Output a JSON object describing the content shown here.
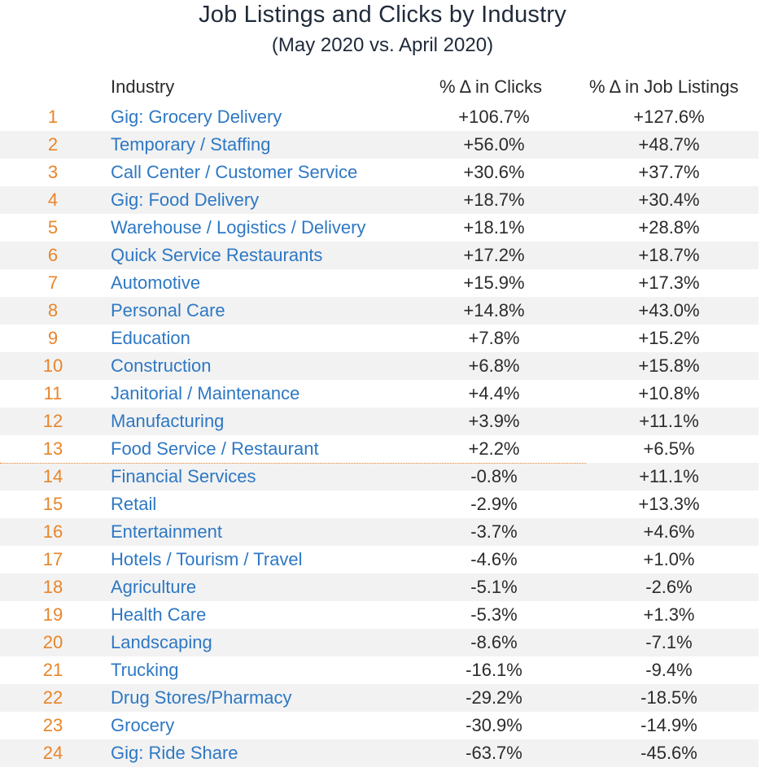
{
  "chart_data": {
    "type": "table",
    "title": "Job Listings and Clicks by Industry",
    "subtitle": "(May 2020 vs. April 2020)",
    "columns": [
      "Industry",
      "% Δ in Clicks",
      "% Δ in Job Listings"
    ],
    "rows": [
      {
        "rank": "1",
        "industry": "Gig: Grocery Delivery",
        "clicks": "+106.7%",
        "jobs": "+127.6%"
      },
      {
        "rank": "2",
        "industry": "Temporary / Staffing",
        "clicks": "+56.0%",
        "jobs": "+48.7%"
      },
      {
        "rank": "3",
        "industry": "Call Center / Customer Service",
        "clicks": "+30.6%",
        "jobs": "+37.7%"
      },
      {
        "rank": "4",
        "industry": "Gig: Food Delivery",
        "clicks": "+18.7%",
        "jobs": "+30.4%"
      },
      {
        "rank": "5",
        "industry": "Warehouse / Logistics / Delivery",
        "clicks": "+18.1%",
        "jobs": "+28.8%"
      },
      {
        "rank": "6",
        "industry": "Quick Service Restaurants",
        "clicks": "+17.2%",
        "jobs": "+18.7%"
      },
      {
        "rank": "7",
        "industry": "Automotive",
        "clicks": "+15.9%",
        "jobs": "+17.3%"
      },
      {
        "rank": "8",
        "industry": "Personal Care",
        "clicks": "+14.8%",
        "jobs": "+43.0%"
      },
      {
        "rank": "9",
        "industry": "Education",
        "clicks": "+7.8%",
        "jobs": "+15.2%"
      },
      {
        "rank": "10",
        "industry": "Construction",
        "clicks": "+6.8%",
        "jobs": "+15.8%"
      },
      {
        "rank": "11",
        "industry": "Janitorial / Maintenance",
        "clicks": "+4.4%",
        "jobs": "+10.8%"
      },
      {
        "rank": "12",
        "industry": "Manufacturing",
        "clicks": "+3.9%",
        "jobs": "+11.1%"
      },
      {
        "rank": "13",
        "industry": "Food Service / Restaurant",
        "clicks": "+2.2%",
        "jobs": "+6.5%"
      },
      {
        "rank": "14",
        "industry": "Financial Services",
        "clicks": "-0.8%",
        "jobs": "+11.1%"
      },
      {
        "rank": "15",
        "industry": "Retail",
        "clicks": "-2.9%",
        "jobs": "+13.3%"
      },
      {
        "rank": "16",
        "industry": "Entertainment",
        "clicks": "-3.7%",
        "jobs": "+4.6%"
      },
      {
        "rank": "17",
        "industry": "Hotels / Tourism / Travel",
        "clicks": "-4.6%",
        "jobs": "+1.0%"
      },
      {
        "rank": "18",
        "industry": "Agriculture",
        "clicks": "-5.1%",
        "jobs": "-2.6%"
      },
      {
        "rank": "19",
        "industry": "Health Care",
        "clicks": "-5.3%",
        "jobs": "+1.3%"
      },
      {
        "rank": "20",
        "industry": "Landscaping",
        "clicks": "-8.6%",
        "jobs": "-7.1%"
      },
      {
        "rank": "21",
        "industry": "Trucking",
        "clicks": "-16.1%",
        "jobs": "-9.4%"
      },
      {
        "rank": "22",
        "industry": "Drug Stores/Pharmacy",
        "clicks": "-29.2%",
        "jobs": "-18.5%"
      },
      {
        "rank": "23",
        "industry": "Grocery",
        "clicks": "-30.9%",
        "jobs": "-14.9%"
      },
      {
        "rank": "24",
        "industry": "Gig: Ride Share",
        "clicks": "-63.7%",
        "jobs": "-45.6%"
      }
    ]
  },
  "colors": {
    "rank": "#e8852a",
    "industry": "#2e78c4",
    "stripe": "#f2f2f2",
    "divider": "#e8852a"
  }
}
